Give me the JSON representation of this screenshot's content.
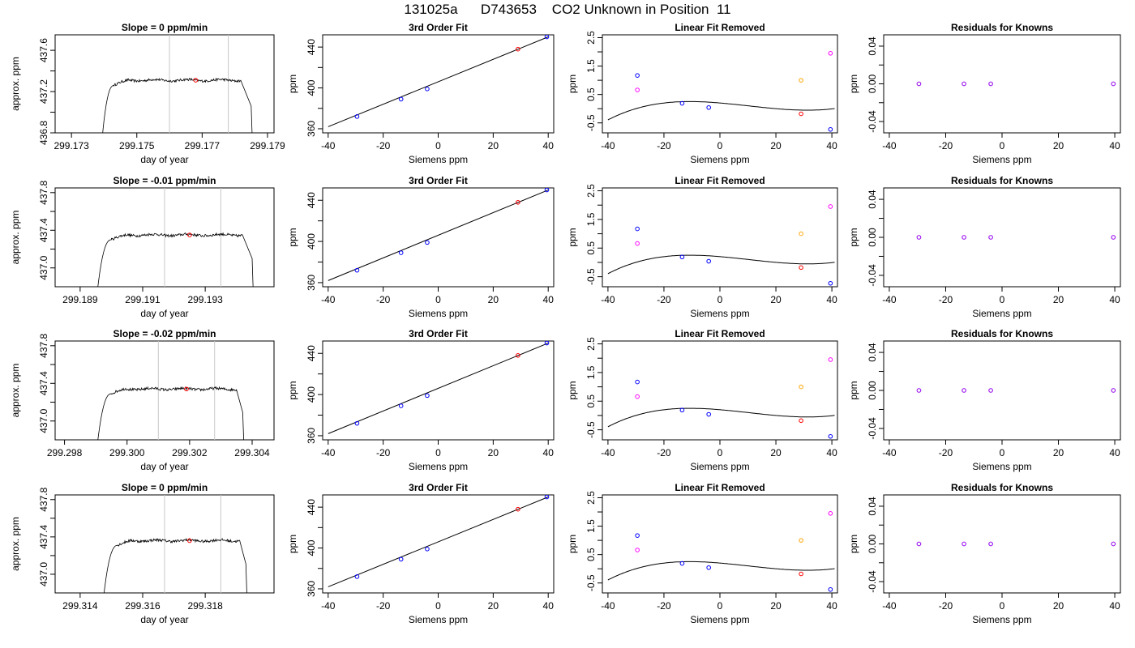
{
  "title": "131025a      D743653    CO2 Unknown in Position  11",
  "colors": {
    "axis": "#000000",
    "trace": "#000000",
    "window_line": "#c8c8c8",
    "known": "#0000ff",
    "unknown": "#ff0000",
    "lin_extra": "#ff00ff",
    "lin_extra2": "#ffa500",
    "resid_ring": "#a020f0"
  },
  "chart_data": [
    {
      "type": "line",
      "title": "Slope =  0  ppm/min",
      "xlabel": "day of year",
      "ylabel": "approx. ppm",
      "xlim": [
        299.1725,
        299.1792
      ],
      "ylim": [
        436.8,
        437.75
      ],
      "xticks": [
        299.173,
        299.175,
        299.177,
        299.179
      ],
      "xticklabels": [
        "299.173",
        "299.175",
        "299.177",
        "299.179"
      ],
      "yticks": [
        436.8,
        437.2,
        437.6
      ],
      "yticklabels": [
        "436.8",
        "437.2",
        "437.6"
      ],
      "ytick_minor": [
        437.0,
        437.4
      ],
      "trace": {
        "x_rise_start": 299.1739,
        "x_plateau": 299.1743,
        "x_end": 299.1782,
        "x_drop": 299.1785,
        "level": 437.31,
        "noise": 0.012
      },
      "window": [
        299.176,
        299.1778
      ],
      "marker": [
        299.1768,
        437.31
      ]
    },
    {
      "type": "line",
      "title": "Slope =  -0.01  ppm/min",
      "xlabel": "day of year",
      "ylabel": "approx. ppm",
      "xlim": [
        299.1882,
        299.1952
      ],
      "ylim": [
        436.8,
        437.85
      ],
      "xticks": [
        299.189,
        299.191,
        299.193
      ],
      "xticklabels": [
        "299.189",
        "299.191",
        "299.193"
      ],
      "yticks": [
        437.0,
        437.4,
        437.8
      ],
      "yticklabels": [
        "437.0",
        "437.4",
        "437.8"
      ],
      "ytick_minor": [
        437.2,
        437.6
      ],
      "trace": {
        "x_rise_start": 299.1895,
        "x_plateau": 299.19,
        "x_end": 299.1942,
        "x_drop": 299.1945,
        "level": 437.35,
        "noise": 0.014
      },
      "window": [
        299.1917,
        299.1935
      ],
      "marker": [
        299.1925,
        437.35
      ]
    },
    {
      "type": "line",
      "title": "Slope =  -0.02  ppm/min",
      "xlabel": "day of year",
      "ylabel": "approx. ppm",
      "xlim": [
        299.2977,
        299.3047
      ],
      "ylim": [
        436.8,
        437.85
      ],
      "xticks": [
        299.298,
        299.3,
        299.302,
        299.304
      ],
      "xticklabels": [
        "299.298",
        "299.300",
        "299.302",
        "299.304"
      ],
      "yticks": [
        437.0,
        437.4,
        437.8
      ],
      "yticklabels": [
        "437.0",
        "437.4",
        "437.8"
      ],
      "ytick_minor": [
        437.2,
        437.6
      ],
      "trace": {
        "x_rise_start": 299.299,
        "x_plateau": 299.2995,
        "x_end": 299.3035,
        "x_drop": 299.3037,
        "level": 437.34,
        "noise": 0.014
      },
      "window": [
        299.301,
        299.3028
      ],
      "marker": [
        299.3019,
        437.34
      ]
    },
    {
      "type": "line",
      "title": "Slope =  0  ppm/min",
      "xlabel": "day of year",
      "ylabel": "approx. ppm",
      "xlim": [
        299.3132,
        299.3202
      ],
      "ylim": [
        436.8,
        437.85
      ],
      "xticks": [
        299.314,
        299.316,
        299.318
      ],
      "xticklabels": [
        "299.314",
        "299.316",
        "299.318"
      ],
      "yticks": [
        437.0,
        437.4,
        437.8
      ],
      "yticklabels": [
        "437.0",
        "437.4",
        "437.8"
      ],
      "ytick_minor": [
        437.2,
        437.6
      ],
      "trace": {
        "x_rise_start": 299.3147,
        "x_plateau": 299.3152,
        "x_end": 299.3191,
        "x_drop": 299.3193,
        "level": 437.36,
        "noise": 0.014
      },
      "window": [
        299.3167,
        299.3185
      ],
      "marker": [
        299.3175,
        437.36
      ]
    },
    {
      "type": "scatter",
      "title": "3rd Order Fit",
      "xlabel": "Siemens ppm",
      "ylabel": "ppm",
      "xlim": [
        -42,
        42
      ],
      "ylim": [
        356,
        452
      ],
      "xticks": [
        -40,
        -20,
        0,
        20,
        40
      ],
      "xticklabels": [
        "-40",
        "-20",
        "0",
        "20",
        "40"
      ],
      "yticks": [
        360,
        400,
        440
      ],
      "yticklabels": [
        "360",
        "400",
        "440"
      ],
      "ytick_minor": [
        380,
        420
      ],
      "fit_line": [
        [
          -40,
          362
        ],
        [
          40,
          450
        ]
      ],
      "known": [
        [
          -29.5,
          372
        ],
        [
          -13.5,
          389
        ],
        [
          -4,
          399
        ],
        [
          39.5,
          450
        ]
      ],
      "unknown": [
        [
          29,
          438
        ]
      ]
    },
    {
      "type": "scatter",
      "title": "Linear Fit Removed",
      "xlabel": "Siemens ppm",
      "ylabel": "ppm",
      "xlim": [
        -42,
        42
      ],
      "ylim": [
        -0.85,
        2.6
      ],
      "xticks": [
        -40,
        -20,
        0,
        20,
        40
      ],
      "xticklabels": [
        "-40",
        "-20",
        "0",
        "20",
        "40"
      ],
      "yticks": [
        -0.5,
        0.5,
        1.5,
        2.5
      ],
      "yticklabels": [
        "-0.5",
        "0.5",
        "1.5",
        "2.5"
      ],
      "ytick_minor": [
        0,
        1,
        2
      ],
      "poly": [
        0.2016,
        -0.00825,
        -0.0002516,
        8.18e-06
      ],
      "known": [
        [
          -29.5,
          1.17
        ],
        [
          -13.5,
          0.19
        ],
        [
          -4,
          0.04
        ],
        [
          39.5,
          -0.73
        ]
      ],
      "unknown": [
        [
          29,
          -0.18
        ]
      ],
      "extra_magenta": [
        [
          -29.5,
          0.66
        ],
        [
          39.5,
          1.95
        ]
      ],
      "extra_orange": [
        [
          29,
          1.0
        ]
      ]
    },
    {
      "type": "scatter",
      "title": "Residuals for Knowns",
      "xlabel": "Siemens ppm",
      "ylabel": "ppm",
      "xlim": [
        -42,
        42
      ],
      "ylim": [
        -0.052,
        0.052
      ],
      "xticks": [
        -40,
        -20,
        0,
        20,
        40
      ],
      "xticklabels": [
        "-40",
        "-20",
        "0",
        "20",
        "40"
      ],
      "yticks": [
        -0.04,
        0.0,
        0.04
      ],
      "yticklabels": [
        "-0.04",
        "0.00",
        "0.04"
      ],
      "ytick_minor": [
        -0.02,
        0.02
      ],
      "residuals": [
        [
          -29.5,
          0
        ],
        [
          -13.5,
          0
        ],
        [
          -4,
          0
        ],
        [
          39.5,
          0
        ]
      ]
    }
  ]
}
